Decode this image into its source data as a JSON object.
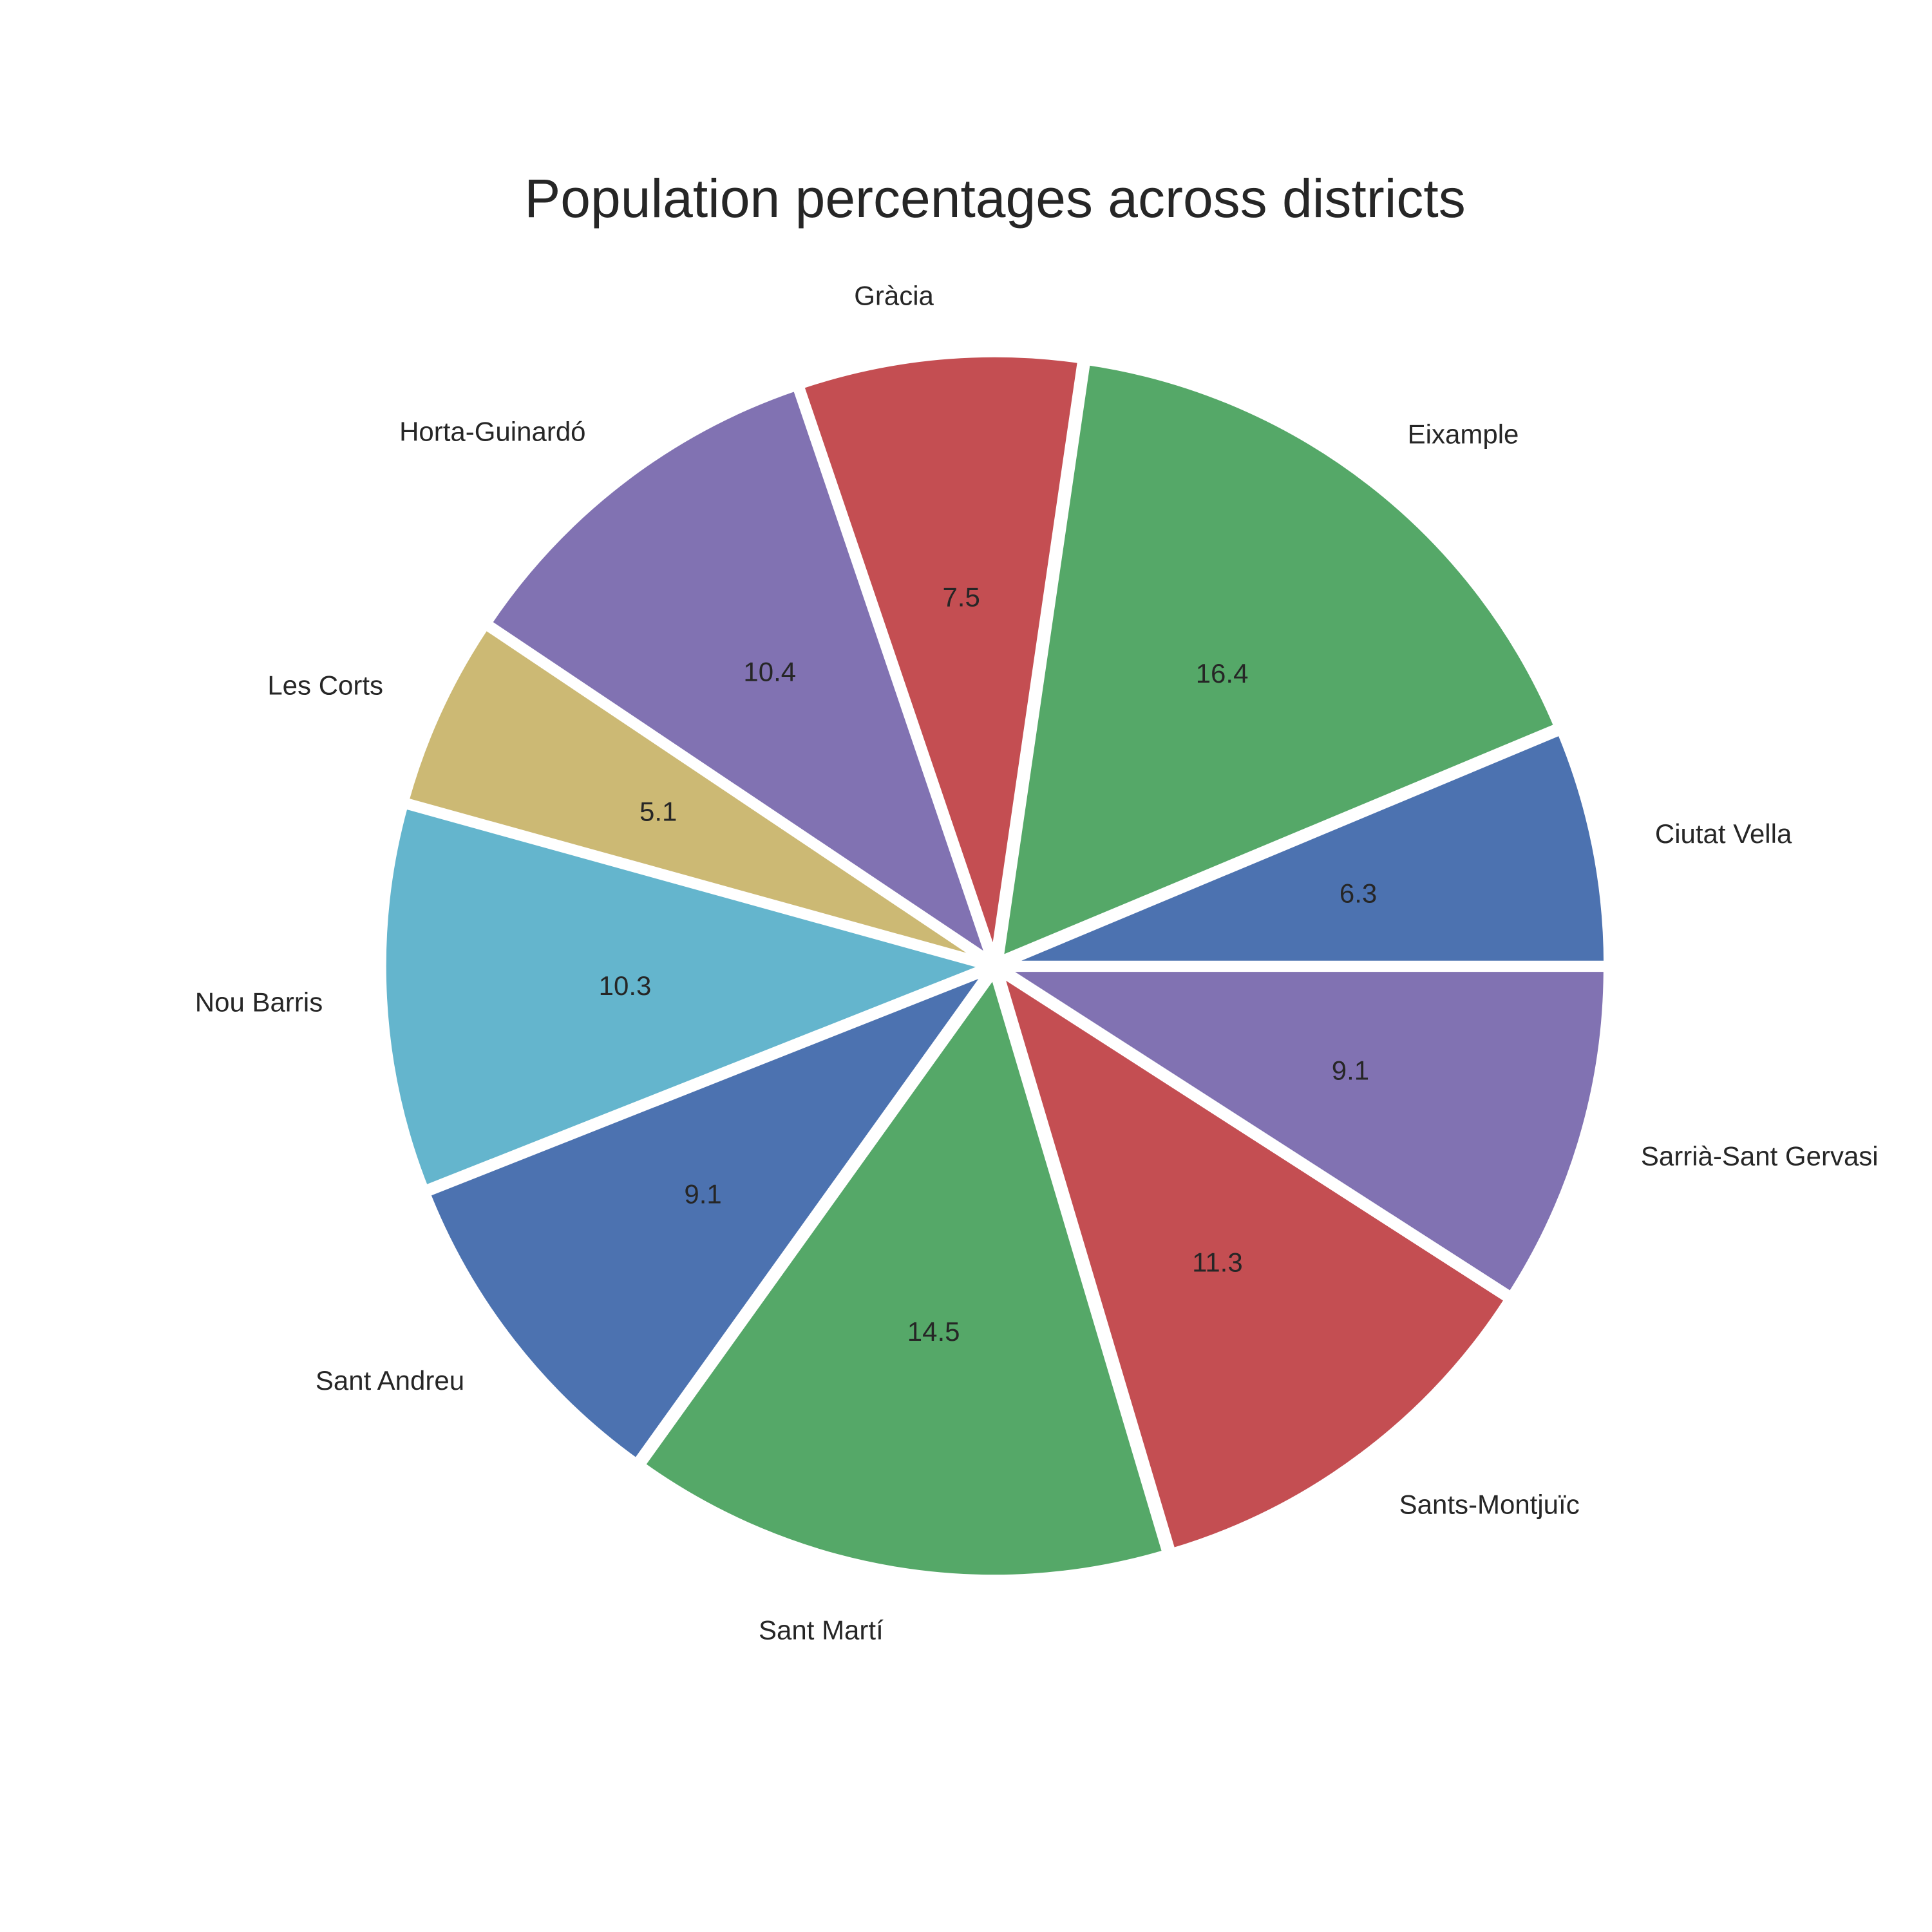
{
  "chart_data": {
    "type": "pie",
    "title": "Population percentages across districts",
    "categories": [
      "Ciutat Vella",
      "Eixample",
      "Gràcia",
      "Horta-Guinardó",
      "Les Corts",
      "Nou Barris",
      "Sant Andreu",
      "Sant Martí",
      "Sants-Montjuïc",
      "Sarrià-Sant Gervasi"
    ],
    "values": [
      6.3,
      16.4,
      7.5,
      10.4,
      5.1,
      10.3,
      9.1,
      14.5,
      11.3,
      9.1
    ],
    "value_labels": [
      "6.3",
      "16.4",
      "7.5",
      "10.4",
      "5.1",
      "10.3",
      "9.1",
      "14.5",
      "11.3",
      "9.1"
    ],
    "colors": [
      "#4c72b0",
      "#55a868",
      "#c44e52",
      "#8172b2",
      "#ccb974",
      "#64b5cd",
      "#4c72b0",
      "#55a868",
      "#c44e52",
      "#8172b2"
    ],
    "start_angle": 0,
    "direction": "counterclockwise",
    "exploded": true,
    "edge_color": "#ffffff",
    "legend": "none"
  }
}
